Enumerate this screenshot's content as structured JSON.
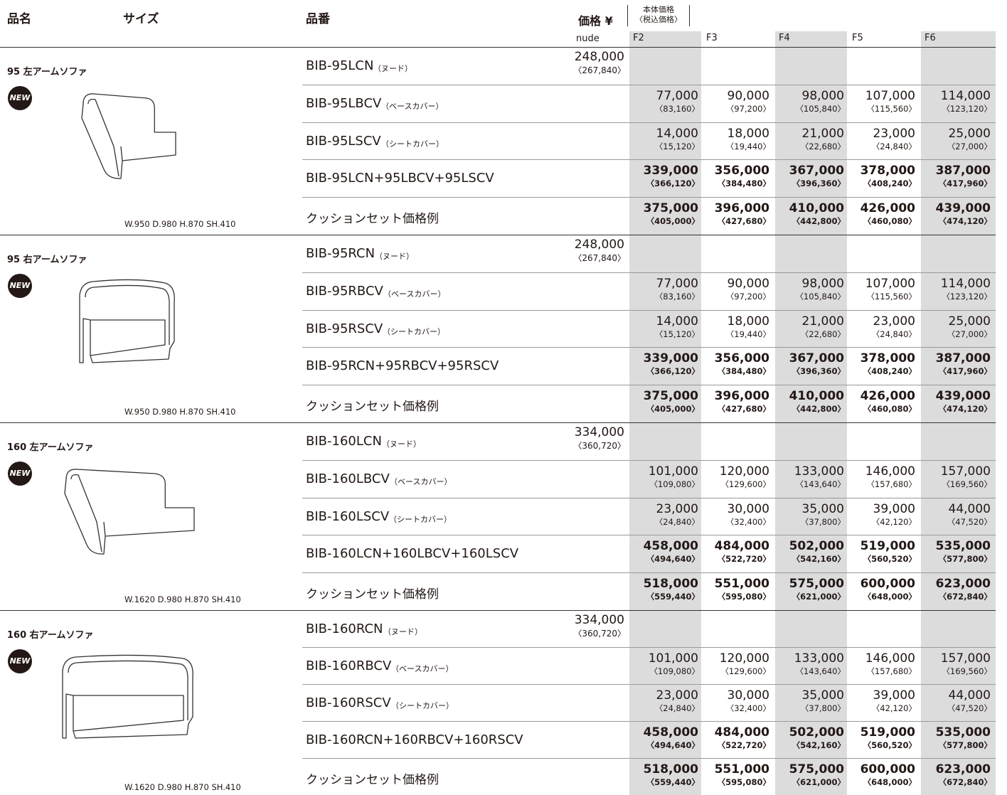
{
  "header": {
    "name": "品名",
    "size": "サイズ",
    "code": "品番",
    "price": "価格 ¥",
    "price_note": [
      "本体価格",
      "〈税込価格〉"
    ],
    "nude": "nude",
    "fabrics": [
      "F2",
      "F3",
      "F4",
      "F5",
      "F6"
    ]
  },
  "sections": [
    {
      "name": "95 左アームソファ",
      "badge": "NEW",
      "dims": "W.950 D.980 H.870 SH.410",
      "rows": [
        {
          "code": "BIB-95LCN",
          "note": "（ヌード）",
          "nude": {
            "price": "248,000",
            "tax": "〈267,840〉"
          }
        },
        {
          "code": "BIB-95LBCV",
          "note": "（ベースカバー）",
          "prices": [
            {
              "price": "77,000",
              "tax": "〈83,160〉"
            },
            {
              "price": "90,000",
              "tax": "〈97,200〉"
            },
            {
              "price": "98,000",
              "tax": "〈105,840〉"
            },
            {
              "price": "107,000",
              "tax": "〈115,560〉"
            },
            {
              "price": "114,000",
              "tax": "〈123,120〉"
            }
          ]
        },
        {
          "code": "BIB-95LSCV",
          "note": "（シートカバー）",
          "prices": [
            {
              "price": "14,000",
              "tax": "〈15,120〉"
            },
            {
              "price": "18,000",
              "tax": "〈19,440〉"
            },
            {
              "price": "21,000",
              "tax": "〈22,680〉"
            },
            {
              "price": "23,000",
              "tax": "〈24,840〉"
            },
            {
              "price": "25,000",
              "tax": "〈27,000〉"
            }
          ]
        },
        {
          "code": "BIB-95LCN+95LBCV+95LSCV",
          "prices": [
            {
              "price": "339,000",
              "tax": "〈366,120〉"
            },
            {
              "price": "356,000",
              "tax": "〈384,480〉"
            },
            {
              "price": "367,000",
              "tax": "〈396,360〉"
            },
            {
              "price": "378,000",
              "tax": "〈408,240〉"
            },
            {
              "price": "387,000",
              "tax": "〈417,960〉"
            }
          ]
        },
        {
          "code": "クッションセット価格例",
          "prices": [
            {
              "price": "375,000",
              "tax": "〈405,000〉"
            },
            {
              "price": "396,000",
              "tax": "〈427,680〉"
            },
            {
              "price": "410,000",
              "tax": "〈442,800〉"
            },
            {
              "price": "426,000",
              "tax": "〈460,080〉"
            },
            {
              "price": "439,000",
              "tax": "〈474,120〉"
            }
          ]
        }
      ]
    },
    {
      "name": "95 右アームソファ",
      "badge": "NEW",
      "dims": "W.950 D.980 H.870 SH.410",
      "rows": [
        {
          "code": "BIB-95RCN",
          "note": "（ヌード）",
          "nude": {
            "price": "248,000",
            "tax": "〈267,840〉"
          }
        },
        {
          "code": "BIB-95RBCV",
          "note": "（ベースカバー）",
          "prices": [
            {
              "price": "77,000",
              "tax": "〈83,160〉"
            },
            {
              "price": "90,000",
              "tax": "〈97,200〉"
            },
            {
              "price": "98,000",
              "tax": "〈105,840〉"
            },
            {
              "price": "107,000",
              "tax": "〈115,560〉"
            },
            {
              "price": "114,000",
              "tax": "〈123,120〉"
            }
          ]
        },
        {
          "code": "BIB-95RSCV",
          "note": "（シートカバー）",
          "prices": [
            {
              "price": "14,000",
              "tax": "〈15,120〉"
            },
            {
              "price": "18,000",
              "tax": "〈19,440〉"
            },
            {
              "price": "21,000",
              "tax": "〈22,680〉"
            },
            {
              "price": "23,000",
              "tax": "〈24,840〉"
            },
            {
              "price": "25,000",
              "tax": "〈27,000〉"
            }
          ]
        },
        {
          "code": "BIB-95RCN+95RBCV+95RSCV",
          "prices": [
            {
              "price": "339,000",
              "tax": "〈366,120〉"
            },
            {
              "price": "356,000",
              "tax": "〈384,480〉"
            },
            {
              "price": "367,000",
              "tax": "〈396,360〉"
            },
            {
              "price": "378,000",
              "tax": "〈408,240〉"
            },
            {
              "price": "387,000",
              "tax": "〈417,960〉"
            }
          ]
        },
        {
          "code": "クッションセット価格例",
          "prices": [
            {
              "price": "375,000",
              "tax": "〈405,000〉"
            },
            {
              "price": "396,000",
              "tax": "〈427,680〉"
            },
            {
              "price": "410,000",
              "tax": "〈442,800〉"
            },
            {
              "price": "426,000",
              "tax": "〈460,080〉"
            },
            {
              "price": "439,000",
              "tax": "〈474,120〉"
            }
          ]
        }
      ]
    },
    {
      "name": "160 左アームソファ",
      "badge": "NEW",
      "dims": "W.1620 D.980 H.870 SH.410",
      "rows": [
        {
          "code": "BIB-160LCN",
          "note": "（ヌード）",
          "nude": {
            "price": "334,000",
            "tax": "〈360,720〉"
          }
        },
        {
          "code": "BIB-160LBCV",
          "note": "（ベースカバー）",
          "prices": [
            {
              "price": "101,000",
              "tax": "〈109,080〉"
            },
            {
              "price": "120,000",
              "tax": "〈129,600〉"
            },
            {
              "price": "133,000",
              "tax": "〈143,640〉"
            },
            {
              "price": "146,000",
              "tax": "〈157,680〉"
            },
            {
              "price": "157,000",
              "tax": "〈169,560〉"
            }
          ]
        },
        {
          "code": "BIB-160LSCV",
          "note": "（シートカバー）",
          "prices": [
            {
              "price": "23,000",
              "tax": "〈24,840〉"
            },
            {
              "price": "30,000",
              "tax": "〈32,400〉"
            },
            {
              "price": "35,000",
              "tax": "〈37,800〉"
            },
            {
              "price": "39,000",
              "tax": "〈42,120〉"
            },
            {
              "price": "44,000",
              "tax": "〈47,520〉"
            }
          ]
        },
        {
          "code": "BIB-160LCN+160LBCV+160LSCV",
          "prices": [
            {
              "price": "458,000",
              "tax": "〈494,640〉"
            },
            {
              "price": "484,000",
              "tax": "〈522,720〉"
            },
            {
              "price": "502,000",
              "tax": "〈542,160〉"
            },
            {
              "price": "519,000",
              "tax": "〈560,520〉"
            },
            {
              "price": "535,000",
              "tax": "〈577,800〉"
            }
          ]
        },
        {
          "code": "クッションセット価格例",
          "prices": [
            {
              "price": "518,000",
              "tax": "〈559,440〉"
            },
            {
              "price": "551,000",
              "tax": "〈595,080〉"
            },
            {
              "price": "575,000",
              "tax": "〈621,000〉"
            },
            {
              "price": "600,000",
              "tax": "〈648,000〉"
            },
            {
              "price": "623,000",
              "tax": "〈672,840〉"
            }
          ]
        }
      ]
    },
    {
      "name": "160 右アームソファ",
      "badge": "NEW",
      "dims": "W.1620 D.980 H.870 SH.410",
      "rows": [
        {
          "code": "BIB-160RCN",
          "note": "（ヌード）",
          "nude": {
            "price": "334,000",
            "tax": "〈360,720〉"
          }
        },
        {
          "code": "BIB-160RBCV",
          "note": "（ベースカバー）",
          "prices": [
            {
              "price": "101,000",
              "tax": "〈109,080〉"
            },
            {
              "price": "120,000",
              "tax": "〈129,600〉"
            },
            {
              "price": "133,000",
              "tax": "〈143,640〉"
            },
            {
              "price": "146,000",
              "tax": "〈157,680〉"
            },
            {
              "price": "157,000",
              "tax": "〈169,560〉"
            }
          ]
        },
        {
          "code": "BIB-160RSCV",
          "note": "（シートカバー）",
          "prices": [
            {
              "price": "23,000",
              "tax": "〈24,840〉"
            },
            {
              "price": "30,000",
              "tax": "〈32,400〉"
            },
            {
              "price": "35,000",
              "tax": "〈37,800〉"
            },
            {
              "price": "39,000",
              "tax": "〈42,120〉"
            },
            {
              "price": "44,000",
              "tax": "〈47,520〉"
            }
          ]
        },
        {
          "code": "BIB-160RCN+160RBCV+160RSCV",
          "prices": [
            {
              "price": "458,000",
              "tax": "〈494,640〉"
            },
            {
              "price": "484,000",
              "tax": "〈522,720〉"
            },
            {
              "price": "502,000",
              "tax": "〈542,160〉"
            },
            {
              "price": "519,000",
              "tax": "〈560,520〉"
            },
            {
              "price": "535,000",
              "tax": "〈577,800〉"
            }
          ]
        },
        {
          "code": "クッションセット価格例",
          "prices": [
            {
              "price": "518,000",
              "tax": "〈559,440〉"
            },
            {
              "price": "551,000",
              "tax": "〈595,080〉"
            },
            {
              "price": "575,000",
              "tax": "〈621,000〉"
            },
            {
              "price": "600,000",
              "tax": "〈648,000〉"
            },
            {
              "price": "623,000",
              "tax": "〈672,840〉"
            }
          ]
        }
      ]
    }
  ]
}
